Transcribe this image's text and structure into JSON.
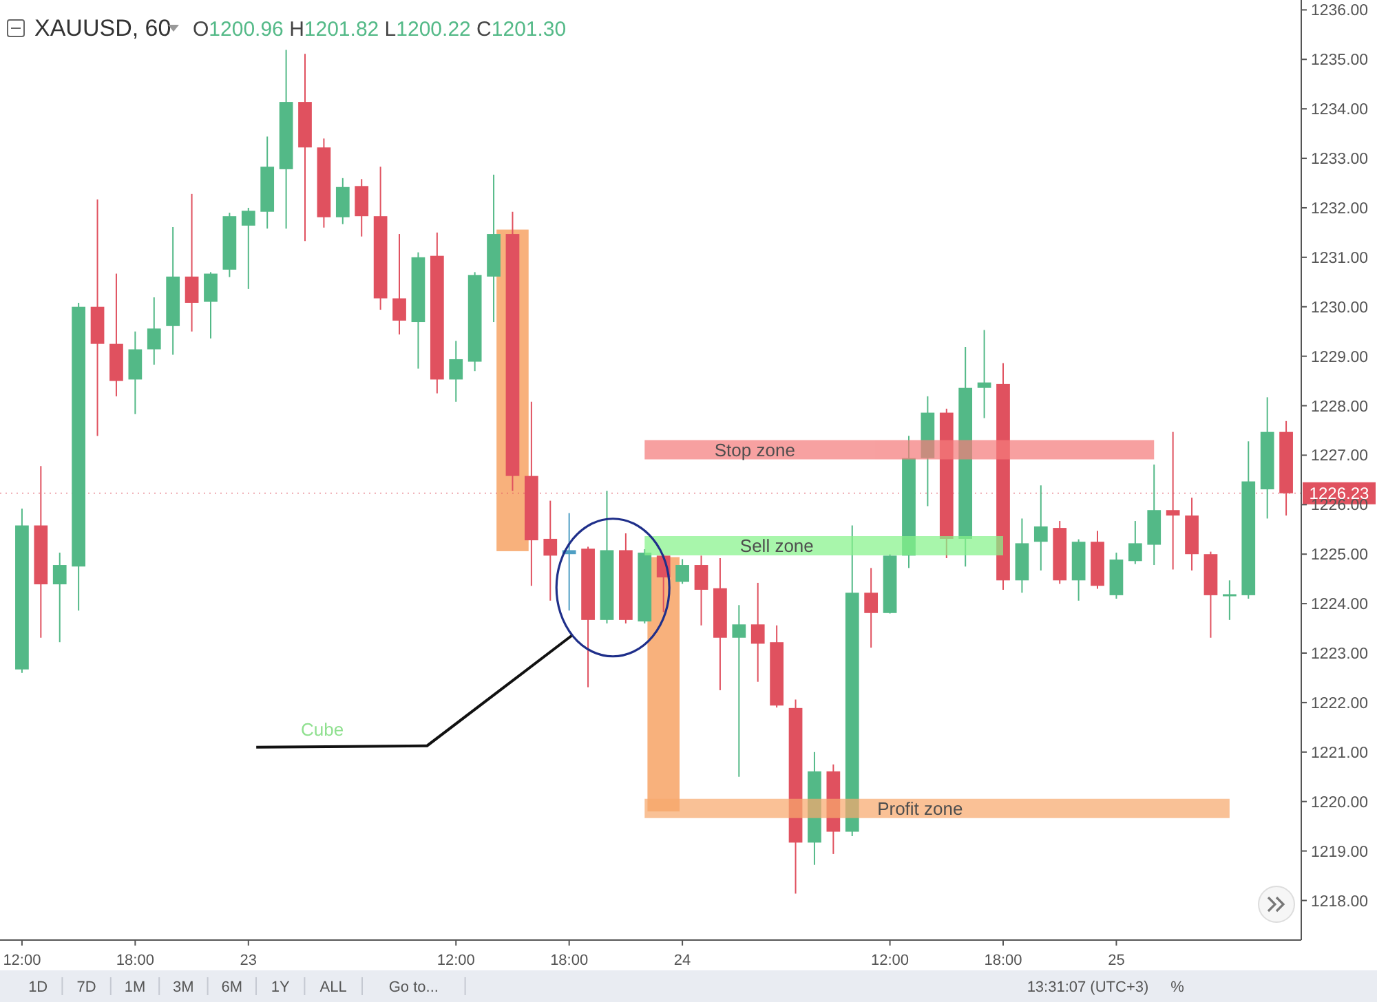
{
  "chart_data": {
    "type": "candlestick",
    "title": "XAUUSD, 60",
    "subtitle": "O1200.96 H1201.82 L1200.22 C1201.30",
    "categories": [
      "12:00",
      null,
      null,
      null,
      null,
      null,
      "18:00",
      null,
      null,
      null,
      null,
      null,
      "23",
      null,
      null,
      null,
      null,
      null,
      null,
      null,
      null,
      null,
      null,
      "12:00",
      null,
      null,
      null,
      null,
      null,
      "18:00",
      null,
      null,
      null,
      null,
      null,
      "24",
      null,
      null,
      null,
      null,
      null,
      null,
      null,
      null,
      null,
      null,
      "12:00",
      null,
      null,
      null,
      null,
      null,
      "18:00",
      null,
      null,
      null,
      null,
      null,
      "25",
      null,
      null,
      null,
      null,
      null,
      null,
      null,
      null,
      null
    ],
    "ohlc": [
      [
        1222.67,
        1225.92,
        1222.6,
        1225.58
      ],
      [
        1225.58,
        1226.78,
        1223.31,
        1224.39
      ],
      [
        1224.39,
        1225.03,
        1223.22,
        1224.78
      ],
      [
        1224.75,
        1230.08,
        1223.86,
        1230.0
      ],
      [
        1230.0,
        1232.17,
        1227.39,
        1229.25
      ],
      [
        1229.25,
        1230.67,
        1228.19,
        1228.5
      ],
      [
        1228.53,
        1229.5,
        1227.83,
        1229.14
      ],
      [
        1229.14,
        1230.19,
        1228.83,
        1229.56
      ],
      [
        1229.61,
        1231.61,
        1229.03,
        1230.61
      ],
      [
        1230.61,
        1232.28,
        1229.5,
        1230.08
      ],
      [
        1230.1,
        1230.7,
        1229.36,
        1230.67
      ],
      [
        1230.75,
        1231.9,
        1230.6,
        1231.83
      ],
      [
        1231.64,
        1232.0,
        1230.36,
        1231.94
      ],
      [
        1231.92,
        1233.44,
        1231.58,
        1232.83
      ],
      [
        1232.78,
        1235.19,
        1231.58,
        1234.14
      ],
      [
        1234.14,
        1235.11,
        1231.33,
        1233.22
      ],
      [
        1233.22,
        1233.4,
        1231.6,
        1231.81
      ],
      [
        1231.81,
        1232.6,
        1231.67,
        1232.42
      ],
      [
        1232.44,
        1232.58,
        1231.42,
        1231.83
      ],
      [
        1231.83,
        1232.83,
        1229.94,
        1230.17
      ],
      [
        1230.17,
        1231.47,
        1229.44,
        1229.72
      ],
      [
        1229.69,
        1231.1,
        1228.75,
        1231.0
      ],
      [
        1231.03,
        1231.5,
        1228.25,
        1228.53
      ],
      [
        1228.53,
        1229.31,
        1228.08,
        1228.94
      ],
      [
        1228.89,
        1230.7,
        1228.7,
        1230.64
      ],
      [
        1230.61,
        1232.67,
        1229.69,
        1231.47
      ],
      [
        1231.47,
        1231.92,
        1226.28,
        1226.58
      ],
      [
        1226.58,
        1228.08,
        1224.36,
        1225.28
      ],
      [
        1225.31,
        1226.08,
        1224.06,
        1224.97
      ],
      [
        1225.0,
        1225.83,
        1223.86,
        1225.08
      ],
      [
        1225.11,
        1225.15,
        1222.31,
        1223.67
      ],
      [
        1223.67,
        1226.28,
        1223.6,
        1225.08
      ],
      [
        1225.08,
        1225.42,
        1223.6,
        1223.67
      ],
      [
        1223.64,
        1225.1,
        1223.6,
        1225.03
      ],
      [
        1224.97,
        1225.0,
        1223.83,
        1224.53
      ],
      [
        1224.44,
        1224.9,
        1224.4,
        1224.78
      ],
      [
        1224.78,
        1224.97,
        1223.56,
        1224.28
      ],
      [
        1224.31,
        1224.92,
        1222.25,
        1223.31
      ],
      [
        1223.31,
        1223.97,
        1220.5,
        1223.58
      ],
      [
        1223.58,
        1224.42,
        1222.42,
        1223.19
      ],
      [
        1223.22,
        1223.56,
        1221.9,
        1221.94
      ],
      [
        1221.89,
        1222.06,
        1218.14,
        1219.17
      ],
      [
        1219.17,
        1221.0,
        1218.72,
        1220.61
      ],
      [
        1220.61,
        1220.75,
        1218.94,
        1219.39
      ],
      [
        1219.39,
        1225.58,
        1219.3,
        1224.22
      ],
      [
        1224.22,
        1224.72,
        1223.11,
        1223.81
      ],
      [
        1223.81,
        1225.0,
        1223.8,
        1224.97
      ],
      [
        1224.97,
        1227.39,
        1224.72,
        1226.94
      ],
      [
        1226.94,
        1228.19,
        1225.97,
        1227.86
      ],
      [
        1227.86,
        1227.94,
        1224.92,
        1225.31
      ],
      [
        1225.31,
        1229.19,
        1224.75,
        1228.36
      ],
      [
        1228.36,
        1229.53,
        1227.75,
        1228.47
      ],
      [
        1228.44,
        1228.86,
        1224.28,
        1224.47
      ],
      [
        1224.47,
        1225.72,
        1224.22,
        1225.22
      ],
      [
        1225.25,
        1226.39,
        1224.67,
        1225.56
      ],
      [
        1225.53,
        1225.67,
        1224.4,
        1224.47
      ],
      [
        1224.47,
        1225.3,
        1224.06,
        1225.25
      ],
      [
        1225.25,
        1225.47,
        1224.3,
        1224.36
      ],
      [
        1224.17,
        1225.03,
        1224.1,
        1224.89
      ],
      [
        1224.86,
        1225.67,
        1224.8,
        1225.22
      ],
      [
        1225.19,
        1226.81,
        1224.78,
        1225.89
      ],
      [
        1225.89,
        1227.47,
        1224.69,
        1225.78
      ],
      [
        1225.78,
        1226.14,
        1224.67,
        1225.0
      ],
      [
        1225.0,
        1225.05,
        1223.31,
        1224.17
      ],
      [
        1224.17,
        1224.47,
        1223.67,
        1224.19
      ],
      [
        1224.17,
        1227.28,
        1224.1,
        1226.47
      ],
      [
        1226.31,
        1228.17,
        1225.72,
        1227.47
      ],
      [
        1227.47,
        1227.69,
        1225.78,
        1226.23
      ]
    ],
    "colors": [
      "#53b987",
      "#e0515f",
      "#53b987",
      "#53b987",
      "#e0515f",
      "#e0515f",
      "#53b987",
      "#53b987",
      "#53b987",
      "#e0515f",
      "#53b987",
      "#53b987",
      "#53b987",
      "#53b987",
      "#53b987",
      "#e0515f",
      "#e0515f",
      "#53b987",
      "#e0515f",
      "#e0515f",
      "#e0515f",
      "#53b987",
      "#e0515f",
      "#53b987",
      "#53b987",
      "#53b987",
      "#e0515f",
      "#e0515f",
      "#e0515f",
      "#4f9fc4",
      "#e0515f",
      "#53b987",
      "#e0515f",
      "#53b987",
      "#e0515f",
      "#53b987",
      "#e0515f",
      "#e0515f",
      "#53b987",
      "#e0515f",
      "#e0515f",
      "#e0515f",
      "#53b987",
      "#e0515f",
      "#53b987",
      "#e0515f",
      "#53b987",
      "#53b987",
      "#53b987",
      "#e0515f",
      "#53b987",
      "#53b987",
      "#e0515f",
      "#53b987",
      "#53b987",
      "#e0515f",
      "#53b987",
      "#e0515f",
      "#53b987",
      "#53b987",
      "#53b987",
      "#e0515f",
      "#e0515f",
      "#e0515f",
      "#53b987",
      "#53b987",
      "#53b987",
      "#e0515f"
    ],
    "series": [
      {
        "type": "bar",
        "color": "#f7a96e",
        "values": [
          null,
          null,
          null,
          null,
          null,
          null,
          null,
          null,
          null,
          null,
          null,
          null,
          null,
          null,
          null,
          null,
          null,
          null,
          null,
          null,
          null,
          null,
          null,
          null,
          null,
          null,
          6.5,
          null,
          null,
          null,
          null,
          null,
          null,
          null,
          5.14,
          null,
          null,
          null,
          null,
          null,
          null,
          null,
          null,
          null,
          null,
          null,
          null,
          null,
          null,
          null,
          null,
          null,
          null,
          null,
          null,
          null,
          null,
          null,
          null,
          null,
          null,
          null,
          null,
          null,
          null,
          null,
          null,
          null
        ],
        "base": [
          null,
          null,
          null,
          null,
          null,
          null,
          null,
          null,
          null,
          null,
          null,
          null,
          null,
          null,
          null,
          null,
          null,
          null,
          null,
          null,
          null,
          null,
          null,
          null,
          null,
          null,
          1225.06,
          null,
          null,
          null,
          null,
          null,
          null,
          null,
          1219.8,
          null,
          null,
          null,
          null,
          null,
          null,
          null,
          null,
          null,
          null,
          null,
          null,
          null,
          null,
          null,
          null,
          null,
          null,
          null,
          null,
          null,
          null,
          null,
          null,
          null,
          null,
          null,
          null,
          null,
          null,
          null,
          null,
          null
        ]
      },
      {
        "type": "line",
        "name": "Stop zone",
        "color": "#f47c7c",
        "values": [
          null,
          null,
          null,
          null,
          null,
          null,
          null,
          null,
          null,
          null,
          null,
          null,
          null,
          null,
          null,
          null,
          null,
          null,
          null,
          null,
          null,
          null,
          null,
          null,
          null,
          null,
          null,
          null,
          null,
          null,
          null,
          null,
          null,
          1227.11,
          1227.11,
          1227.11,
          1227.11,
          1227.11,
          1227.11,
          1227.11,
          1227.11,
          1227.11,
          1227.11,
          1227.11,
          1227.11,
          1227.11,
          1227.11,
          1227.11,
          1227.11,
          1227.11,
          1227.11,
          1227.11,
          1227.11,
          1227.11,
          1227.11,
          1227.11,
          1227.11,
          1227.11,
          1227.11,
          1227.11,
          1227.11,
          null,
          null,
          null,
          null,
          null,
          null,
          null
        ]
      },
      {
        "type": "line",
        "name": "Sell zone",
        "color": "#86f28a",
        "values": [
          null,
          null,
          null,
          null,
          null,
          null,
          null,
          null,
          null,
          null,
          null,
          null,
          null,
          null,
          null,
          null,
          null,
          null,
          null,
          null,
          null,
          null,
          null,
          null,
          null,
          null,
          null,
          null,
          null,
          null,
          null,
          null,
          null,
          1225.17,
          1225.17,
          1225.17,
          1225.17,
          1225.17,
          1225.17,
          1225.17,
          1225.17,
          1225.17,
          1225.17,
          1225.17,
          1225.17,
          1225.17,
          1225.17,
          1225.17,
          1225.17,
          1225.17,
          1225.17,
          1225.17,
          1225.17,
          null,
          null,
          null,
          null,
          null,
          null,
          null,
          null,
          null,
          null,
          null,
          null,
          null,
          null,
          null
        ]
      },
      {
        "type": "line",
        "name": "Profit zone",
        "color": "#f7a96e",
        "values": [
          null,
          null,
          null,
          null,
          null,
          null,
          null,
          null,
          null,
          null,
          null,
          null,
          null,
          null,
          null,
          null,
          null,
          null,
          null,
          null,
          null,
          null,
          null,
          null,
          null,
          null,
          null,
          null,
          null,
          null,
          null,
          null,
          null,
          1219.86,
          1219.86,
          1219.86,
          1219.86,
          1219.86,
          1219.86,
          1219.86,
          1219.86,
          1219.86,
          1219.86,
          1219.86,
          1219.86,
          1219.86,
          1219.86,
          1219.86,
          1219.86,
          1219.86,
          1219.86,
          1219.86,
          1219.86,
          1219.86,
          1219.86,
          1219.86,
          1219.86,
          1219.86,
          1219.86,
          1219.86,
          1219.86,
          1219.86,
          1219.86,
          1219.86,
          1219.86,
          null,
          null,
          null
        ]
      }
    ],
    "ylim": [
      1217.2,
      1236.2
    ],
    "yticks": [
      {
        "value": 1218,
        "label": "1218.00"
      },
      {
        "value": 1219,
        "label": "1219.00"
      },
      {
        "value": 1220,
        "label": "1220.00"
      },
      {
        "value": 1221,
        "label": "1221.00"
      },
      {
        "value": 1222,
        "label": "1222.00"
      },
      {
        "value": 1223,
        "label": "1223.00"
      },
      {
        "value": 1224,
        "label": "1224.00"
      },
      {
        "value": 1225,
        "label": "1225.00"
      },
      {
        "value": 1226,
        "label": "1226.00"
      },
      {
        "value": 1227,
        "label": "1227.00"
      },
      {
        "value": 1228,
        "label": "1228.00"
      },
      {
        "value": 1229,
        "label": "1229.00"
      },
      {
        "value": 1230,
        "label": "1230.00"
      },
      {
        "value": 1231,
        "label": "1231.00"
      },
      {
        "value": 1232,
        "label": "1232.00"
      },
      {
        "value": 1233,
        "label": "1233.00"
      },
      {
        "value": 1234,
        "label": "1234.00"
      },
      {
        "value": 1235,
        "label": "1235.00"
      },
      {
        "value": 1236,
        "label": "1236.00"
      }
    ],
    "ref_lines": [
      {
        "axis": "y",
        "value": 1226.23,
        "label": "1226.23",
        "color": "#e0515f",
        "line_style": "dotted"
      }
    ],
    "annotations": [
      "Cube",
      "1D",
      "7D",
      "1M",
      "3M",
      "6M",
      "1Y",
      "ALL",
      "Go to...",
      "13:31:07 (UTC+3)",
      "%"
    ]
  }
}
